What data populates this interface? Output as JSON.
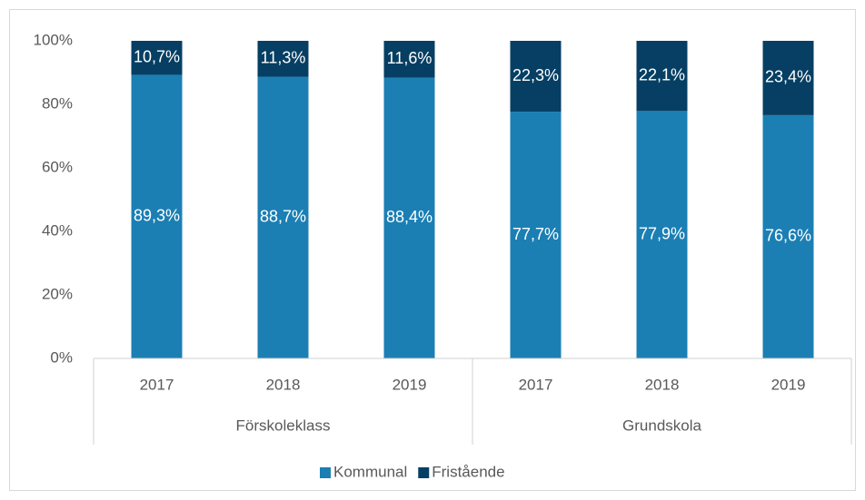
{
  "chart_data": {
    "type": "stacked-bar",
    "groups": [
      {
        "name": "Förskoleklass",
        "categories": [
          "2017",
          "2018",
          "2019"
        ]
      },
      {
        "name": "Grundskola",
        "categories": [
          "2017",
          "2018",
          "2019"
        ]
      }
    ],
    "series": [
      {
        "name": "Kommunal",
        "color": "#1b7fb4",
        "values": [
          89.3,
          88.7,
          88.4,
          77.7,
          77.9,
          76.6
        ],
        "value_labels": [
          "89,3%",
          "88,7%",
          "88,4%",
          "77,7%",
          "77,9%",
          "76,6%"
        ]
      },
      {
        "name": "Fristående",
        "color": "#063f63",
        "values": [
          10.7,
          11.3,
          11.6,
          22.3,
          22.1,
          23.4
        ],
        "value_labels": [
          "10,7%",
          "11,3%",
          "11,6%",
          "22,3%",
          "22,1%",
          "23,4%"
        ]
      }
    ],
    "ylim": [
      0,
      100
    ],
    "yticks": [
      {
        "value": 0,
        "label": "0%"
      },
      {
        "value": 20,
        "label": "20%"
      },
      {
        "value": 40,
        "label": "40%"
      },
      {
        "value": 60,
        "label": "60%"
      },
      {
        "value": 80,
        "label": "80%"
      },
      {
        "value": 100,
        "label": "100%"
      }
    ],
    "grid": false,
    "legend": "bottom"
  }
}
